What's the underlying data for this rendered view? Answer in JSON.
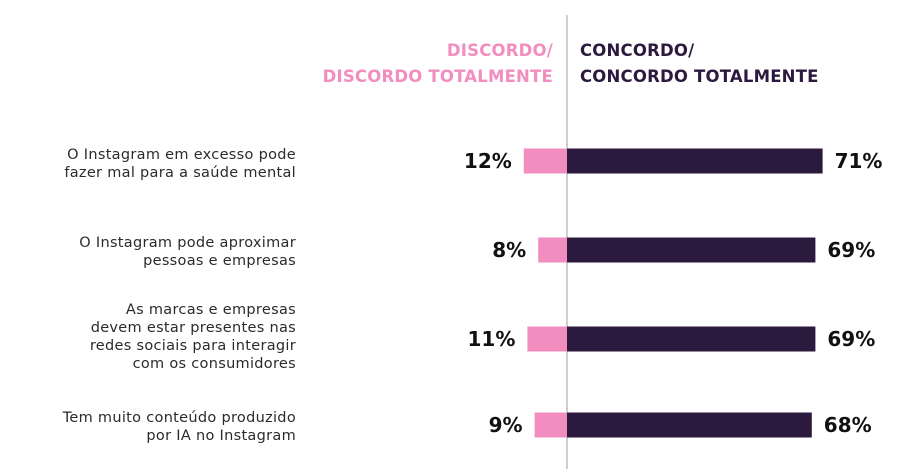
{
  "chart_data": {
    "type": "bar",
    "orientation": "horizontal-diverging",
    "header_negative": [
      "DISCORDO/",
      "DISCORDO TOTALMENTE"
    ],
    "header_positive": [
      "CONCORDO/",
      "CONCORDO TOTALMENTE"
    ],
    "categories": [
      [
        "O Instagram em excesso pode",
        "fazer mal para a saúde mental"
      ],
      [
        "O Instagram pode aproximar",
        "pessoas e empresas"
      ],
      [
        "As marcas e empresas",
        "devem estar presentes nas",
        "redes sociais para interagir",
        "com os consumidores"
      ],
      [
        "Tem muito conteúdo produzido",
        "por IA no Instagram"
      ]
    ],
    "series": [
      {
        "values": [
          12,
          8,
          11,
          9
        ],
        "labels": [
          "12%",
          "8%",
          "11%",
          "9%"
        ],
        "color": "#f28dbf"
      },
      {
        "values": [
          71,
          69,
          69,
          68
        ],
        "labels": [
          "71%",
          "69%",
          "69%",
          "68%"
        ],
        "color": "#2c1a3e"
      }
    ],
    "colors": {
      "negative": "#f28dbf",
      "positive": "#2c1a3e",
      "header_negative": "#f28dbf",
      "header_positive": "#2c1a3e",
      "divider": "#bdbdbd"
    },
    "grid": false,
    "legend": "none"
  }
}
